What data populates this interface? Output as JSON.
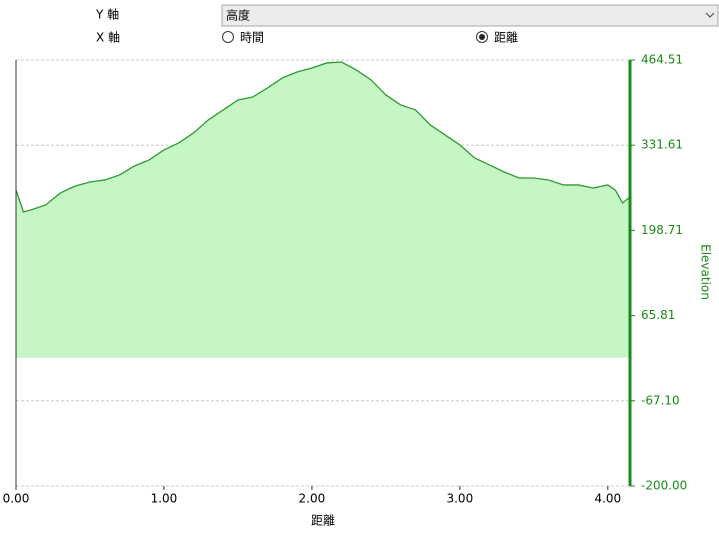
{
  "controls": {
    "y_axis_label": "Y 軸",
    "y_axis_select": "高度",
    "x_axis_label": "X 軸",
    "x_options": [
      {
        "label": "時間",
        "selected": false
      },
      {
        "label": "距離",
        "selected": true
      }
    ]
  },
  "chart_data": {
    "type": "area",
    "x_label": "距離",
    "y_label": "Elevation",
    "x": [
      0,
      0.05,
      0.1,
      0.2,
      0.3,
      0.4,
      0.5,
      0.6,
      0.7,
      0.8,
      0.9,
      1.0,
      1.1,
      1.2,
      1.3,
      1.4,
      1.5,
      1.6,
      1.7,
      1.8,
      1.9,
      2.0,
      2.1,
      2.2,
      2.3,
      2.4,
      2.5,
      2.6,
      2.7,
      2.8,
      2.9,
      3.0,
      3.1,
      3.2,
      3.3,
      3.4,
      3.5,
      3.6,
      3.7,
      3.8,
      3.9,
      4.0,
      4.05,
      4.1,
      4.14
    ],
    "values": [
      261.8,
      227.4,
      230.6,
      238.4,
      257.1,
      268,
      274.2,
      277.4,
      285.2,
      299.2,
      308.6,
      324.2,
      335.1,
      350.7,
      371,
      386.6,
      402.2,
      406.8,
      420.9,
      436.5,
      445.8,
      452.1,
      459.9,
      461.4,
      449,
      433.4,
      410,
      394.4,
      386.6,
      363.2,
      347.6,
      332,
      311.7,
      300.8,
      289.8,
      280.5,
      280.5,
      277.4,
      269.6,
      269.6,
      264.9,
      269.6,
      261.8,
      241.5,
      249.3
    ],
    "color": "#2e9a2e",
    "fill_color": "#c6f5c6",
    "axis_color": "#1a8a1a",
    "xlim": [
      0,
      4.15
    ],
    "xticks": [
      {
        "value": 0,
        "label": "0.00"
      },
      {
        "value": 1,
        "label": "1.00"
      },
      {
        "value": 2,
        "label": "2.00"
      },
      {
        "value": 3,
        "label": "3.00"
      },
      {
        "value": 4,
        "label": "4.00"
      }
    ],
    "ylim": [
      -200,
      464.51
    ],
    "yticks": [
      {
        "value": -200,
        "label": "-200.00"
      },
      {
        "value": -67.1,
        "label": "-67.10"
      },
      {
        "value": 65.81,
        "label": "65.81"
      },
      {
        "value": 198.71,
        "label": "198.71"
      },
      {
        "value": 331.61,
        "label": "331.61"
      },
      {
        "value": 464.51,
        "label": "464.51"
      }
    ],
    "grid": true
  }
}
